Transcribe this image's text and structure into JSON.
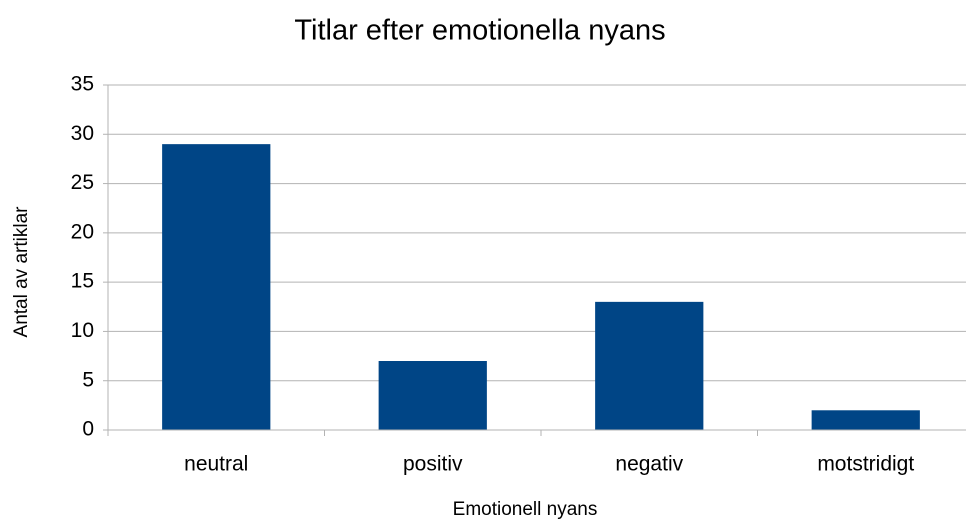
{
  "chart_data": {
    "type": "bar",
    "title": "Titlar efter emotionella nyans",
    "x_label": "Emotionell nyans",
    "y_label": "Antal av artiklar",
    "categories": [
      "neutral",
      "positiv",
      "negativ",
      "motstridigt"
    ],
    "values": [
      29,
      7,
      13,
      2
    ],
    "color": "#004586",
    "ylim": [
      0,
      35
    ],
    "yticks": [
      0,
      5,
      10,
      15,
      20,
      25,
      30,
      35
    ],
    "grid": true
  }
}
